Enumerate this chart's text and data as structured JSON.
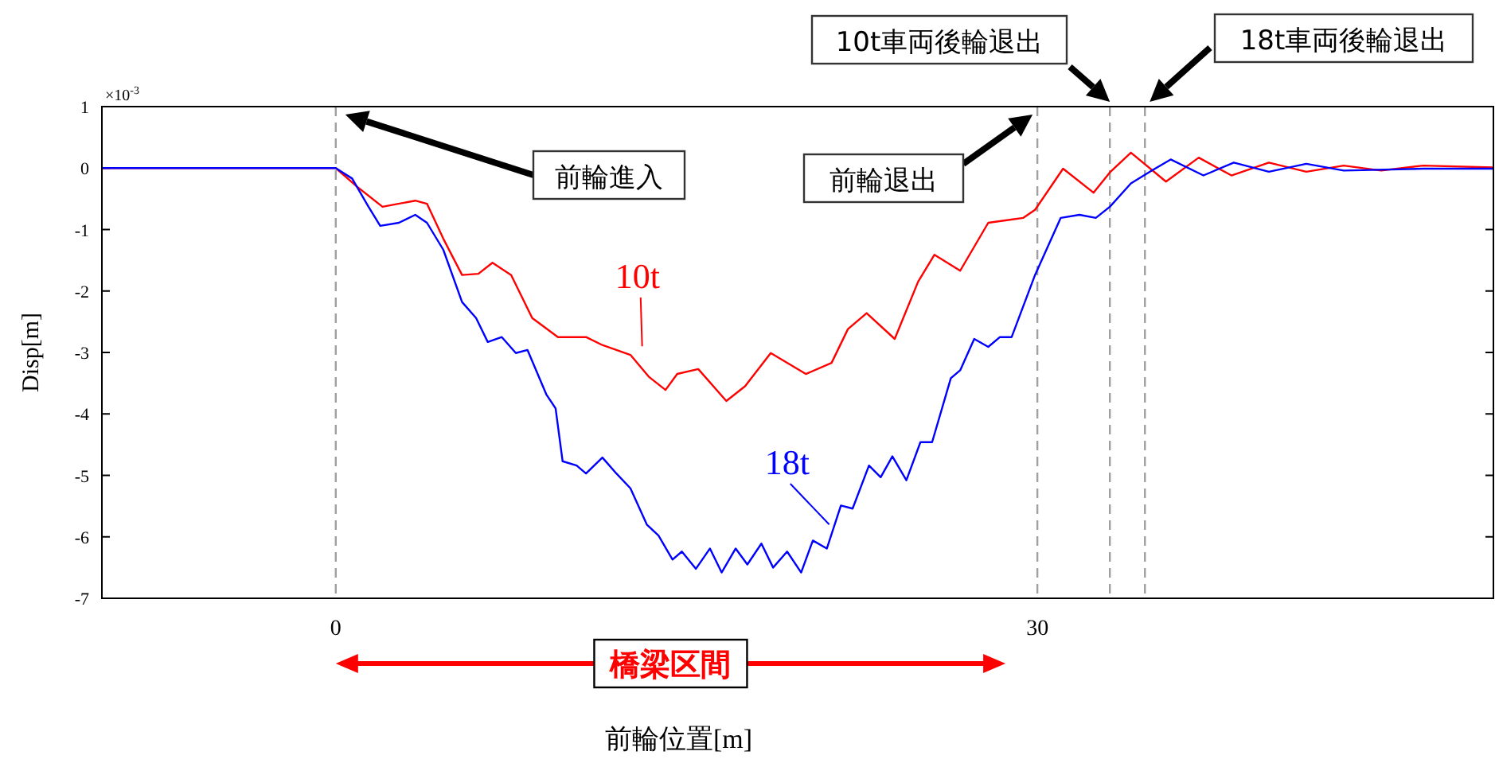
{
  "chart_data": {
    "type": "line",
    "xlabel": "前輪位置[m]",
    "ylabel": "Disp[m]",
    "xlim": [
      -10,
      49.5
    ],
    "ylim": [
      -7,
      1
    ],
    "xticks": [
      0,
      30
    ],
    "yticks": [
      -7,
      -6,
      -5,
      -4,
      -3,
      -2,
      -1,
      0,
      1
    ],
    "series": [
      {
        "name": "10t",
        "color": "#ff0000",
        "x": [
          -10,
          0,
          0.9,
          2.0,
          3.4,
          3.9,
          4.6,
          5.4,
          6.1,
          6.7,
          7.5,
          8.4,
          9.5,
          10.1,
          10.7,
          11.4,
          12.0,
          12.6,
          13.4,
          14.1,
          14.6,
          15.5,
          16.7,
          17.5,
          18.6,
          20.1,
          21.2,
          21.9,
          22.7,
          23.9,
          24.9,
          25.6,
          26.7,
          27.9,
          29.4,
          29.9,
          31.1,
          32.4,
          33.1,
          34.0,
          35.5,
          36.9,
          38.3,
          39.9,
          41.5,
          43.1,
          44.7,
          46.5,
          49.5
        ],
        "values": [
          0,
          0,
          -0.3,
          -0.63,
          -0.53,
          -0.58,
          -1.15,
          -1.74,
          -1.72,
          -1.54,
          -1.74,
          -2.44,
          -2.75,
          -2.75,
          -2.75,
          -2.88,
          -2.96,
          -3.04,
          -3.4,
          -3.61,
          -3.35,
          -3.27,
          -3.79,
          -3.55,
          -3.01,
          -3.35,
          -3.17,
          -2.62,
          -2.36,
          -2.78,
          -1.85,
          -1.41,
          -1.67,
          -0.89,
          -0.81,
          -0.68,
          -0.01,
          -0.4,
          -0.07,
          0.25,
          -0.22,
          0.17,
          -0.12,
          0.09,
          -0.06,
          0.04,
          -0.04,
          0.04,
          0.01
        ]
      },
      {
        "name": "18t",
        "color": "#0000ff",
        "x": [
          -10,
          0,
          0.7,
          1.4,
          1.9,
          2.7,
          3.4,
          3.9,
          4.6,
          5.4,
          6.0,
          6.5,
          7.1,
          7.7,
          8.2,
          9.0,
          9.4,
          9.7,
          10.3,
          10.7,
          11.4,
          12.0,
          12.6,
          13.3,
          13.8,
          14.4,
          14.8,
          15.4,
          16.0,
          16.5,
          17.1,
          17.6,
          18.2,
          18.7,
          19.3,
          19.9,
          20.4,
          21.0,
          21.6,
          22.1,
          22.8,
          23.3,
          23.8,
          24.4,
          25.0,
          25.5,
          26.3,
          26.7,
          27.3,
          27.9,
          28.4,
          28.9,
          29.9,
          31.0,
          31.8,
          32.5,
          33.1,
          34.0,
          34.9,
          35.7,
          37.1,
          38.4,
          39.9,
          41.5,
          43.1,
          46.5,
          49.5
        ],
        "values": [
          0,
          0,
          -0.17,
          -0.63,
          -0.94,
          -0.89,
          -0.76,
          -0.89,
          -1.33,
          -2.18,
          -2.44,
          -2.83,
          -2.75,
          -3.01,
          -2.96,
          -3.68,
          -3.91,
          -4.77,
          -4.84,
          -4.97,
          -4.71,
          -4.97,
          -5.21,
          -5.8,
          -5.98,
          -6.37,
          -6.24,
          -6.52,
          -6.19,
          -6.58,
          -6.19,
          -6.45,
          -6.11,
          -6.5,
          -6.24,
          -6.58,
          -6.06,
          -6.19,
          -5.49,
          -5.54,
          -4.84,
          -5.03,
          -4.69,
          -5.08,
          -4.46,
          -4.46,
          -3.42,
          -3.29,
          -2.78,
          -2.91,
          -2.75,
          -2.75,
          -1.74,
          -0.81,
          -0.76,
          -0.81,
          -0.63,
          -0.25,
          -0.04,
          0.14,
          -0.12,
          0.09,
          -0.06,
          0.07,
          -0.04,
          -0.01,
          -0.01
        ]
      }
    ],
    "ref_lines": [
      {
        "axis": "x",
        "value": 0,
        "color": "#a0a0a0",
        "line_style": "dashed"
      },
      {
        "axis": "x",
        "value": 30,
        "color": "#a0a0a0",
        "line_style": "dashed"
      },
      {
        "axis": "x",
        "value": 33.1,
        "color": "#a0a0a0",
        "line_style": "dashed"
      },
      {
        "axis": "x",
        "value": 34.6,
        "color": "#a0a0a0",
        "line_style": "dashed"
      }
    ],
    "annotations": [
      "×10$^{-3}$",
      "橋梁区間",
      "前輪進入",
      "前輪退出",
      "10t車両後輪退出",
      "18t車両後輪退出"
    ],
    "tick_labels": "xy"
  }
}
